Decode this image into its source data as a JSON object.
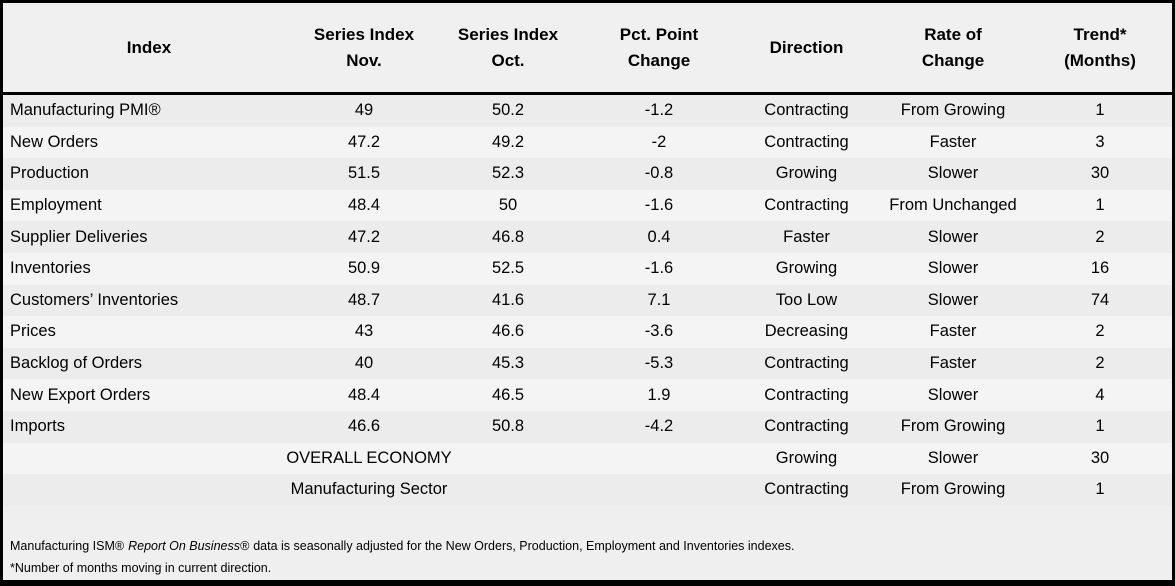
{
  "table": {
    "headers": {
      "index": "Index",
      "nov_line1": "Series Index",
      "nov_line2": "Nov.",
      "oct_line1": "Series Index",
      "oct_line2": "Oct.",
      "chg_line1": "Pct. Point",
      "chg_line2": "Change",
      "direction": "Direction",
      "rate_line1": "Rate of",
      "rate_line2": "Change",
      "trend_line1": "Trend*",
      "trend_line2": "(Months)"
    },
    "rows": [
      {
        "index": "Manufacturing PMI®",
        "nov": "49",
        "oct": "50.2",
        "change": "-1.2",
        "direction": "Contracting",
        "rate_of_change": "From Growing",
        "trend_months": "1"
      },
      {
        "index": "New Orders",
        "nov": "47.2",
        "oct": "49.2",
        "change": "-2",
        "direction": "Contracting",
        "rate_of_change": "Faster",
        "trend_months": "3"
      },
      {
        "index": "Production",
        "nov": "51.5",
        "oct": "52.3",
        "change": "-0.8",
        "direction": "Growing",
        "rate_of_change": "Slower",
        "trend_months": "30"
      },
      {
        "index": "Employment",
        "nov": "48.4",
        "oct": "50",
        "change": "-1.6",
        "direction": "Contracting",
        "rate_of_change": "From Unchanged",
        "trend_months": "1"
      },
      {
        "index": "Supplier Deliveries",
        "nov": "47.2",
        "oct": "46.8",
        "change": "0.4",
        "direction": "Faster",
        "rate_of_change": "Slower",
        "trend_months": "2"
      },
      {
        "index": "Inventories",
        "nov": "50.9",
        "oct": "52.5",
        "change": "-1.6",
        "direction": "Growing",
        "rate_of_change": "Slower",
        "trend_months": "16"
      },
      {
        "index": "Customers’ Inventories",
        "nov": "48.7",
        "oct": "41.6",
        "change": "7.1",
        "direction": "Too Low",
        "rate_of_change": "Slower",
        "trend_months": "74"
      },
      {
        "index": "Prices",
        "nov": "43",
        "oct": "46.6",
        "change": "-3.6",
        "direction": "Decreasing",
        "rate_of_change": "Faster",
        "trend_months": "2"
      },
      {
        "index": "Backlog of Orders",
        "nov": "40",
        "oct": "45.3",
        "change": "-5.3",
        "direction": "Contracting",
        "rate_of_change": "Faster",
        "trend_months": "2"
      },
      {
        "index": "New Export Orders",
        "nov": "48.4",
        "oct": "46.5",
        "change": "1.9",
        "direction": "Contracting",
        "rate_of_change": "Slower",
        "trend_months": "4"
      },
      {
        "index": "Imports",
        "nov": "46.6",
        "oct": "50.8",
        "change": "-4.2",
        "direction": "Contracting",
        "rate_of_change": "From Growing",
        "trend_months": "1"
      }
    ],
    "summary_rows": [
      {
        "label": "OVERALL ECONOMY",
        "direction": "Growing",
        "rate_of_change": "Slower",
        "trend_months": "30"
      },
      {
        "label": "Manufacturing Sector",
        "direction": "Contracting",
        "rate_of_change": "From Growing",
        "trend_months": "1"
      }
    ],
    "footnotes": {
      "line1_prefix": "Manufacturing ISM®",
      "line1_italic": "Report On Business®",
      "line1_suffix": "data is seasonally adjusted for the New Orders, Production, Employment and Inventories indexes.",
      "line2": "*Number of months moving in current direction."
    }
  },
  "colors": {
    "border": "#000000",
    "header_bg": "#f0f0f0",
    "stripe_dark": "#ececec",
    "stripe_light": "#f4f4f5",
    "footer_bg": "#efefef"
  }
}
